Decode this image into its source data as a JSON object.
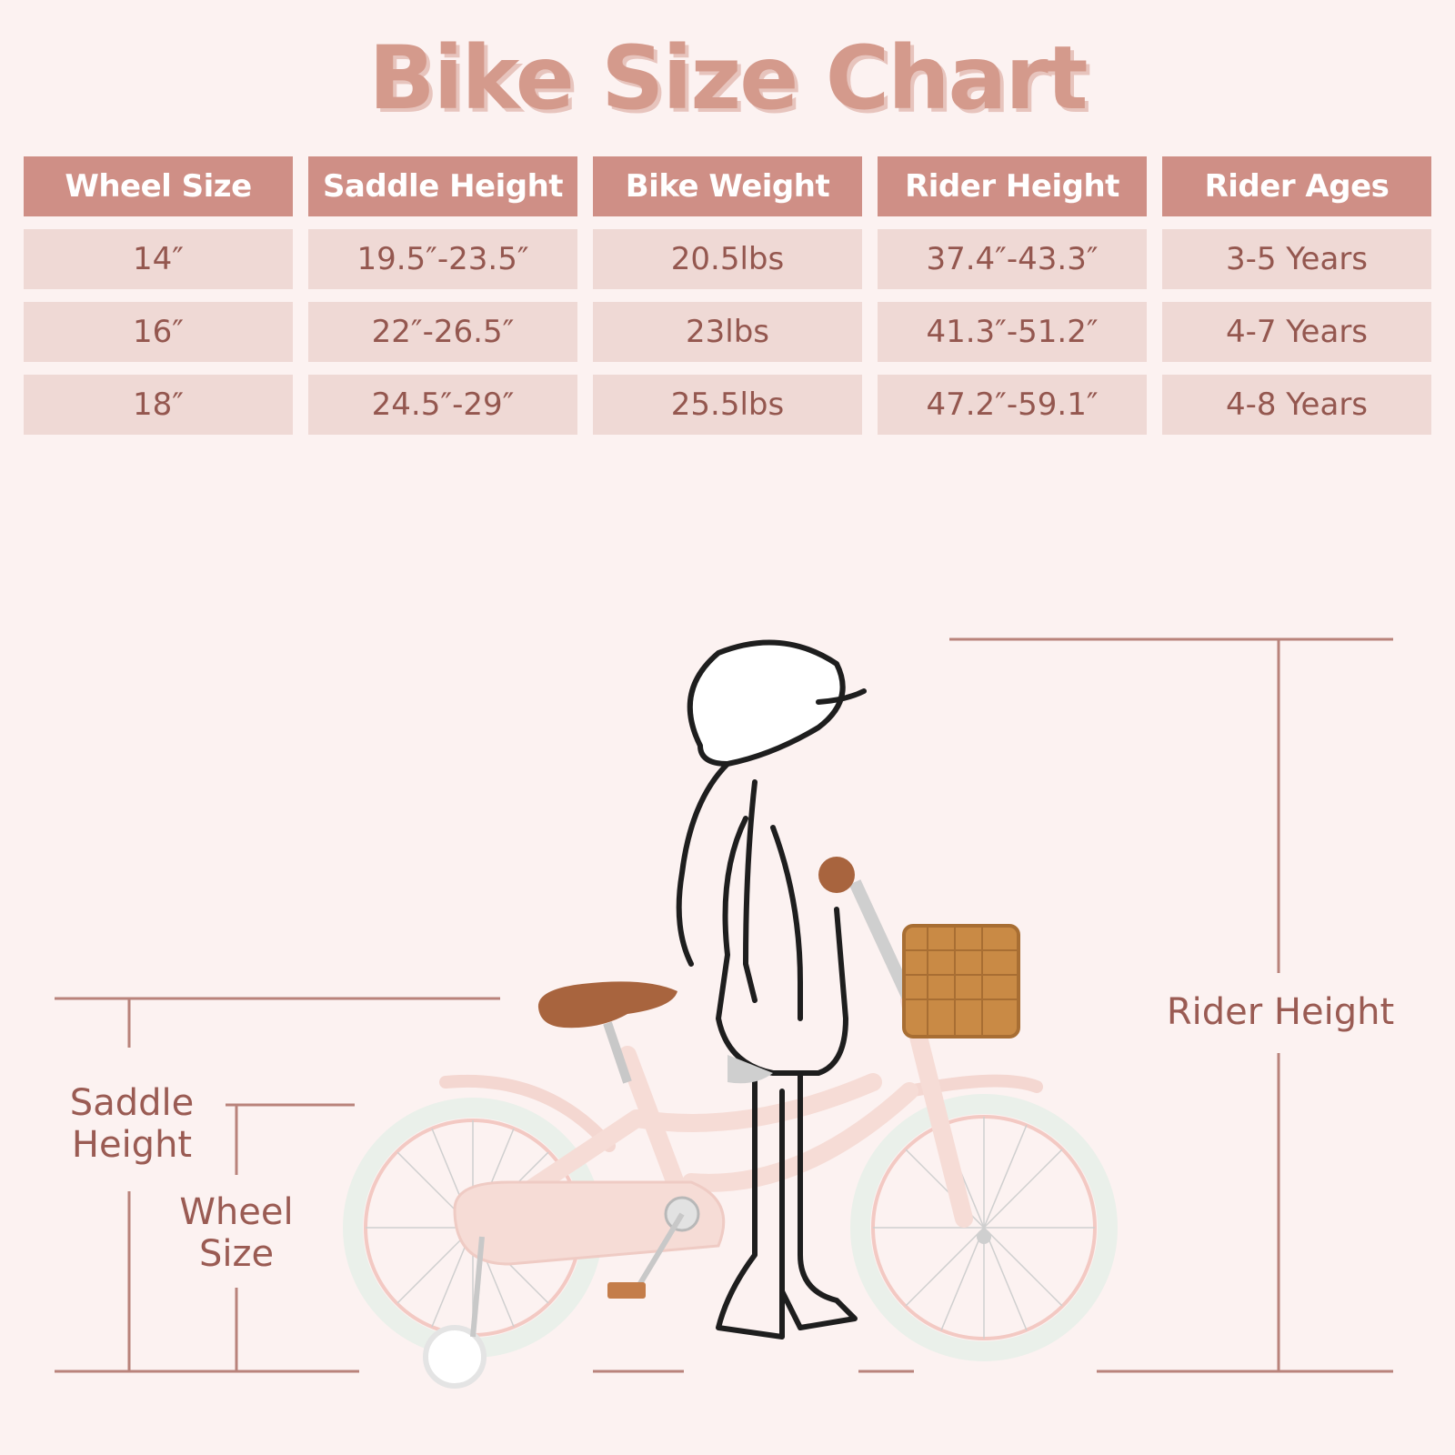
{
  "title": "Bike Size Chart",
  "table": {
    "headers": [
      "Wheel Size",
      "Saddle Height",
      "Bike Weight",
      "Rider Height",
      "Rider Ages"
    ],
    "rows": [
      [
        "14″",
        "19.5″-23.5″",
        "20.5lbs",
        "37.4″-43.3″",
        "3-5 Years"
      ],
      [
        "16″",
        "22″-26.5″",
        "23lbs",
        "41.3″-51.2″",
        "4-7 Years"
      ],
      [
        "18″",
        "24.5″-29″",
        "25.5lbs",
        "47.2″-59.1″",
        "4-8 Years"
      ]
    ]
  },
  "labels": {
    "saddle_height_line1": "Saddle",
    "saddle_height_line2": "Height",
    "wheel_size_line1": "Wheel",
    "wheel_size_line2": "Size",
    "rider_height": "Rider Height"
  },
  "colors": {
    "background": "#fcf2f1",
    "header_bg": "#cf8f86",
    "cell_bg": "#efd9d5",
    "text": "#94574f",
    "title": "#d49a8c",
    "bike_pink": "#f6dcd6",
    "saddle_brown": "#a8643e",
    "basket": "#c98a45"
  }
}
